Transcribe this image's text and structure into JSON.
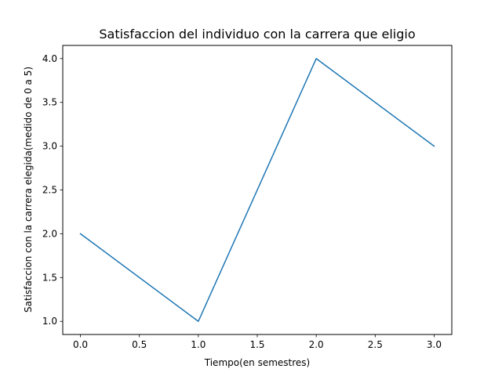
{
  "chart_data": {
    "type": "line",
    "title": "Satisfaccion del individuo con la carrera que eligio",
    "xlabel": "Tiempo(en semestres)",
    "ylabel": "Satisfaccion con la carrera elegida(medido de 0 a 5)",
    "x": [
      0,
      1,
      2,
      3
    ],
    "series": [
      {
        "values": [
          2,
          1,
          4,
          3
        ],
        "color": "#1f77b4"
      }
    ],
    "xlim": [
      -0.15,
      3.15
    ],
    "ylim": [
      0.85,
      4.15
    ],
    "xticks": [
      0.0,
      0.5,
      1.0,
      1.5,
      2.0,
      2.5,
      3.0
    ],
    "xtick_labels": [
      "0.0",
      "0.5",
      "1.0",
      "1.5",
      "2.0",
      "2.5",
      "3.0"
    ],
    "yticks": [
      1.0,
      1.5,
      2.0,
      2.5,
      3.0,
      3.5,
      4.0
    ],
    "ytick_labels": [
      "1.0",
      "1.5",
      "2.0",
      "2.5",
      "3.0",
      "3.5",
      "4.0"
    ],
    "grid": false,
    "legend": "none"
  }
}
